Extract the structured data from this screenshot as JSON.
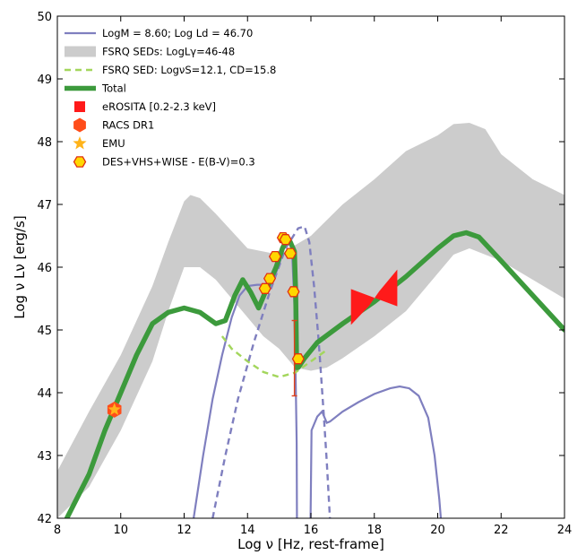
{
  "chart_data": {
    "type": "line",
    "xlabel": "Log ν [Hz, rest-frame]",
    "ylabel": "Log ν Lν [erg/s]",
    "xlim": [
      8,
      24
    ],
    "ylim": [
      42,
      50
    ],
    "xticks": [
      8,
      10,
      12,
      14,
      16,
      18,
      20,
      22,
      24
    ],
    "yticks": [
      42,
      43,
      44,
      45,
      46,
      47,
      48,
      49,
      50
    ],
    "grid": false,
    "legend_position": "top-left",
    "colors": {
      "agn": "#7f7fbf",
      "band": "#cccccc",
      "fsrq_model": "#a3d65c",
      "total": "#3c9a3c",
      "erosita": "#ff1a1a",
      "racs": "#ff4d1a",
      "emu": "#ffb31a",
      "des": "#ffd700",
      "des_edge": "#e03010"
    },
    "legend": [
      {
        "key": "agn",
        "label": "LogM = 8.60; Log Ld = 46.70"
      },
      {
        "key": "band",
        "label": "FSRQ SEDs: LogLγ=46-48"
      },
      {
        "key": "fsrq",
        "label": "FSRQ SED: LogνS=12.1, CD=15.8"
      },
      {
        "key": "total",
        "label": "Total"
      },
      {
        "key": "erosita",
        "label": "eROSITA [0.2-2.3 keV]"
      },
      {
        "key": "racs",
        "label": "RACS DR1"
      },
      {
        "key": "emu",
        "label": "EMU"
      },
      {
        "key": "des",
        "label": "DES+VHS+WISE - E(B-V)=0.3"
      }
    ],
    "series": [
      {
        "name": "FSRQ SEDs: LogLγ=46-48",
        "kind": "band",
        "upper": [
          [
            8.0,
            42.75
          ],
          [
            9.0,
            43.7
          ],
          [
            10.0,
            44.6
          ],
          [
            11.0,
            45.7
          ],
          [
            11.5,
            46.4
          ],
          [
            12.0,
            47.05
          ],
          [
            12.2,
            47.15
          ],
          [
            12.5,
            47.1
          ],
          [
            13.0,
            46.85
          ],
          [
            14.0,
            46.3
          ],
          [
            15.0,
            46.2
          ],
          [
            15.5,
            46.35
          ],
          [
            16.0,
            46.5
          ],
          [
            17.0,
            47.0
          ],
          [
            18.0,
            47.4
          ],
          [
            19.0,
            47.85
          ],
          [
            20.0,
            48.1
          ],
          [
            20.5,
            48.28
          ],
          [
            21.0,
            48.3
          ],
          [
            21.5,
            48.2
          ],
          [
            22.0,
            47.8
          ],
          [
            23.0,
            47.4
          ],
          [
            24.0,
            47.15
          ]
        ],
        "lower": [
          [
            8.0,
            42.0
          ],
          [
            9.0,
            42.5
          ],
          [
            10.0,
            43.4
          ],
          [
            11.0,
            44.5
          ],
          [
            11.5,
            45.3
          ],
          [
            12.0,
            46.0
          ],
          [
            12.5,
            46.0
          ],
          [
            13.0,
            45.8
          ],
          [
            14.0,
            45.2
          ],
          [
            14.5,
            44.9
          ],
          [
            15.0,
            44.7
          ],
          [
            15.5,
            44.4
          ],
          [
            16.0,
            44.35
          ],
          [
            16.5,
            44.4
          ],
          [
            17.0,
            44.55
          ],
          [
            18.0,
            44.9
          ],
          [
            19.0,
            45.3
          ],
          [
            20.0,
            45.9
          ],
          [
            20.5,
            46.2
          ],
          [
            21.0,
            46.3
          ],
          [
            22.0,
            46.1
          ],
          [
            23.0,
            45.8
          ],
          [
            24.0,
            45.5
          ]
        ]
      },
      {
        "name": "LogM = 8.60; Log Ld = 46.70",
        "kind": "solid",
        "segments": [
          [
            [
              12.3,
              42.0
            ],
            [
              12.6,
              43.0
            ],
            [
              12.9,
              43.9
            ],
            [
              13.2,
              44.6
            ],
            [
              13.5,
              45.2
            ],
            [
              13.75,
              45.55
            ],
            [
              14.0,
              45.7
            ],
            [
              14.3,
              45.72
            ],
            [
              14.6,
              45.72
            ],
            [
              14.8,
              45.78
            ],
            [
              15.0,
              46.05
            ],
            [
              15.15,
              46.3
            ],
            [
              15.3,
              46.45
            ],
            [
              15.4,
              46.3
            ],
            [
              15.48,
              45.4
            ],
            [
              15.52,
              44.2
            ],
            [
              15.55,
              43.2
            ],
            [
              15.56,
              42.0
            ]
          ],
          [
            [
              15.99,
              42.0
            ],
            [
              16.02,
              43.4
            ],
            [
              16.2,
              43.62
            ],
            [
              16.35,
              43.7
            ],
            [
              16.5,
              43.52
            ],
            [
              16.6,
              43.54
            ],
            [
              17.0,
              43.7
            ],
            [
              17.5,
              43.85
            ],
            [
              18.0,
              43.98
            ],
            [
              18.5,
              44.07
            ],
            [
              18.8,
              44.1
            ],
            [
              19.1,
              44.07
            ],
            [
              19.4,
              43.95
            ],
            [
              19.7,
              43.6
            ],
            [
              19.9,
              43.0
            ],
            [
              20.05,
              42.3
            ],
            [
              20.1,
              42.0
            ]
          ]
        ]
      },
      {
        "name": "FSRQ SED: LogνS=12.1, CD=15.8",
        "kind": "dashed",
        "color_key": "fsrq_model",
        "points": [
          [
            13.2,
            44.9
          ],
          [
            13.5,
            44.7
          ],
          [
            14.0,
            44.5
          ],
          [
            14.5,
            44.33
          ],
          [
            15.0,
            44.25
          ],
          [
            15.5,
            44.32
          ],
          [
            16.0,
            44.5
          ],
          [
            16.5,
            44.68
          ]
        ]
      },
      {
        "name": "",
        "kind": "dashed",
        "color_key": "agn",
        "points": [
          [
            12.9,
            42.0
          ],
          [
            13.3,
            43.0
          ],
          [
            13.7,
            43.9
          ],
          [
            14.2,
            44.8
          ],
          [
            14.7,
            45.6
          ],
          [
            15.2,
            46.3
          ],
          [
            15.6,
            46.62
          ],
          [
            15.8,
            46.65
          ],
          [
            15.95,
            46.4
          ],
          [
            16.1,
            45.7
          ],
          [
            16.25,
            44.8
          ],
          [
            16.4,
            43.7
          ],
          [
            16.5,
            42.9
          ],
          [
            16.6,
            42.0
          ]
        ]
      },
      {
        "name": "Total",
        "kind": "thick",
        "points": [
          [
            8.3,
            42.0
          ],
          [
            9.0,
            42.7
          ],
          [
            9.5,
            43.4
          ],
          [
            10.0,
            44.0
          ],
          [
            10.5,
            44.6
          ],
          [
            11.0,
            45.1
          ],
          [
            11.5,
            45.28
          ],
          [
            12.0,
            45.35
          ],
          [
            12.5,
            45.28
          ],
          [
            13.0,
            45.1
          ],
          [
            13.3,
            45.15
          ],
          [
            13.6,
            45.55
          ],
          [
            13.85,
            45.8
          ],
          [
            14.1,
            45.6
          ],
          [
            14.35,
            45.35
          ],
          [
            14.6,
            45.65
          ],
          [
            14.9,
            46.0
          ],
          [
            15.1,
            46.3
          ],
          [
            15.25,
            46.45
          ],
          [
            15.35,
            46.4
          ],
          [
            15.48,
            46.25
          ],
          [
            15.52,
            45.6
          ],
          [
            15.55,
            44.4
          ],
          [
            15.6,
            44.4
          ],
          [
            15.8,
            44.55
          ],
          [
            16.2,
            44.8
          ],
          [
            17.0,
            45.1
          ],
          [
            18.0,
            45.45
          ],
          [
            19.0,
            45.85
          ],
          [
            20.0,
            46.3
          ],
          [
            20.5,
            46.5
          ],
          [
            20.9,
            46.55
          ],
          [
            21.3,
            46.48
          ],
          [
            22.0,
            46.1
          ],
          [
            23.0,
            45.55
          ],
          [
            24.0,
            45.0
          ]
        ]
      }
    ],
    "points": {
      "erosita": [
        {
          "x": 17.83,
          "y": 45.38
        },
        {
          "x": 18.16,
          "y": 45.62
        }
      ],
      "racs": [
        {
          "x": 9.8,
          "y": 43.73
        }
      ],
      "emu": [
        {
          "x": 9.8,
          "y": 43.73
        }
      ],
      "des": [
        {
          "x": 14.55,
          "y": 45.66
        },
        {
          "x": 14.7,
          "y": 45.82
        },
        {
          "x": 14.87,
          "y": 46.17
        },
        {
          "x": 15.12,
          "y": 46.47
        },
        {
          "x": 15.2,
          "y": 46.44
        },
        {
          "x": 15.35,
          "y": 46.22
        },
        {
          "x": 15.45,
          "y": 45.61
        },
        {
          "x": 15.6,
          "y": 44.54
        }
      ],
      "error_bar": {
        "x": 15.48,
        "y_low": 43.95,
        "y_high": 45.15
      }
    }
  }
}
